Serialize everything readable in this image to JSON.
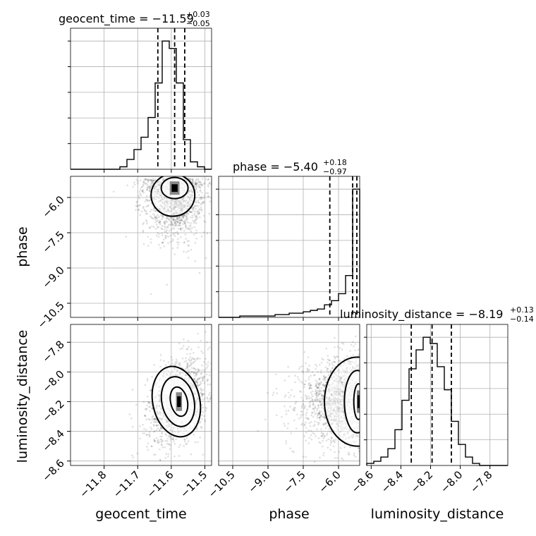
{
  "chart_data": {
    "type": "corner",
    "parameters": [
      "geocent_time",
      "phase",
      "luminosity_distance"
    ],
    "grid": true,
    "marginals": [
      {
        "name": "geocent_time",
        "title": "geocent_time = −11.59",
        "title_sup": "+0.03",
        "title_sub": "−0.05",
        "median": -11.59,
        "upper_err": 0.03,
        "lower_err": 0.05,
        "range": [
          -11.9,
          -11.48
        ],
        "ticks": [
          -11.8,
          -11.7,
          -11.6,
          -11.5
        ],
        "tick_labels": [
          "−11.8",
          "−11.7",
          "−11.6",
          "−11.5"
        ],
        "quantiles": [
          -11.64,
          -11.59,
          -11.56
        ],
        "hist_counts": [
          0,
          0,
          0,
          0,
          0,
          0,
          0,
          1,
          4,
          8,
          13,
          21,
          35,
          52,
          49,
          35,
          12,
          3,
          1,
          0
        ]
      },
      {
        "name": "phase",
        "title": "phase = −5.40",
        "title_sup": "+0.18",
        "title_sub": "−0.97",
        "median": -5.4,
        "upper_err": 0.18,
        "lower_err": 0.97,
        "range": [
          -11.1,
          -5.1
        ],
        "ticks": [
          -10.5,
          -9.0,
          -7.5,
          -6.0
        ],
        "tick_labels": [
          "−10.5",
          "−9.0",
          "−7.5",
          "−6.0"
        ],
        "quantiles": [
          -6.37,
          -5.4,
          -5.22
        ],
        "hist_counts": [
          0,
          0,
          0,
          1,
          1,
          1,
          1,
          1,
          2,
          2,
          3,
          3,
          4,
          5,
          6,
          9,
          12,
          17,
          30,
          92
        ]
      },
      {
        "name": "luminosity_distance",
        "title": "luminosity_distance = −8.19",
        "title_sup": "+0.13",
        "title_sub": "−0.14",
        "median": -8.19,
        "upper_err": 0.13,
        "lower_err": 0.14,
        "range": [
          -8.63,
          -7.68
        ],
        "ticks": [
          -8.6,
          -8.4,
          -8.2,
          -8.0,
          -7.8
        ],
        "tick_labels": [
          "−8.6",
          "−8.4",
          "−8.2",
          "−8.0",
          "−7.8"
        ],
        "quantiles": [
          -8.33,
          -8.19,
          -8.06
        ],
        "hist_counts": [
          1,
          2,
          4,
          8,
          17,
          31,
          46,
          55,
          61,
          58,
          47,
          36,
          21,
          10,
          4,
          1,
          0,
          0,
          0,
          0
        ]
      }
    ],
    "ylabels": {
      "phase": {
        "ticks": [
          -10.5,
          -9.0,
          -7.5,
          -6.0
        ],
        "tick_labels": [
          "−10.5",
          "−9.0",
          "−7.5",
          "−6.0"
        ]
      },
      "luminosity_distance": {
        "ticks": [
          -8.6,
          -8.4,
          -8.2,
          -8.0,
          -7.8
        ],
        "tick_labels": [
          "−8.6",
          "−8.4",
          "−8.2",
          "−8.0",
          "−7.8"
        ]
      }
    },
    "pairs": [
      {
        "x": "geocent_time",
        "y": "phase",
        "center": [
          -11.59,
          -5.5
        ],
        "spread": [
          0.045,
          0.9
        ],
        "corr": 0.0,
        "contour_levels": [
          {
            "cx": -11.595,
            "cy": -5.9,
            "rx": 0.065,
            "ry": 0.9
          },
          {
            "cx": -11.59,
            "cy": -5.6,
            "rx": 0.04,
            "ry": 0.45
          }
        ]
      },
      {
        "x": "geocent_time",
        "y": "luminosity_distance",
        "center": [
          -11.58,
          -8.19
        ],
        "spread": [
          0.045,
          0.14
        ],
        "corr": 0.35,
        "contour_levels": [
          {
            "cx": -11.585,
            "cy": -8.2,
            "rx": 0.07,
            "ry": 0.24
          },
          {
            "cx": -11.58,
            "cy": -8.2,
            "rx": 0.048,
            "ry": 0.17
          },
          {
            "cx": -11.577,
            "cy": -8.2,
            "rx": 0.025,
            "ry": 0.1
          }
        ]
      },
      {
        "x": "phase",
        "y": "luminosity_distance",
        "center": [
          -5.4,
          -8.19
        ],
        "spread": [
          1.0,
          0.14
        ],
        "corr": 0.0,
        "contour_levels": [
          {
            "cx": -5.2,
            "cy": -8.2,
            "rx": 1.4,
            "ry": 0.3
          },
          {
            "cx": -5.2,
            "cy": -8.2,
            "rx": 0.55,
            "ry": 0.21
          },
          {
            "cx": -5.15,
            "cy": -8.2,
            "rx": 0.2,
            "ry": 0.12
          }
        ]
      }
    ]
  }
}
